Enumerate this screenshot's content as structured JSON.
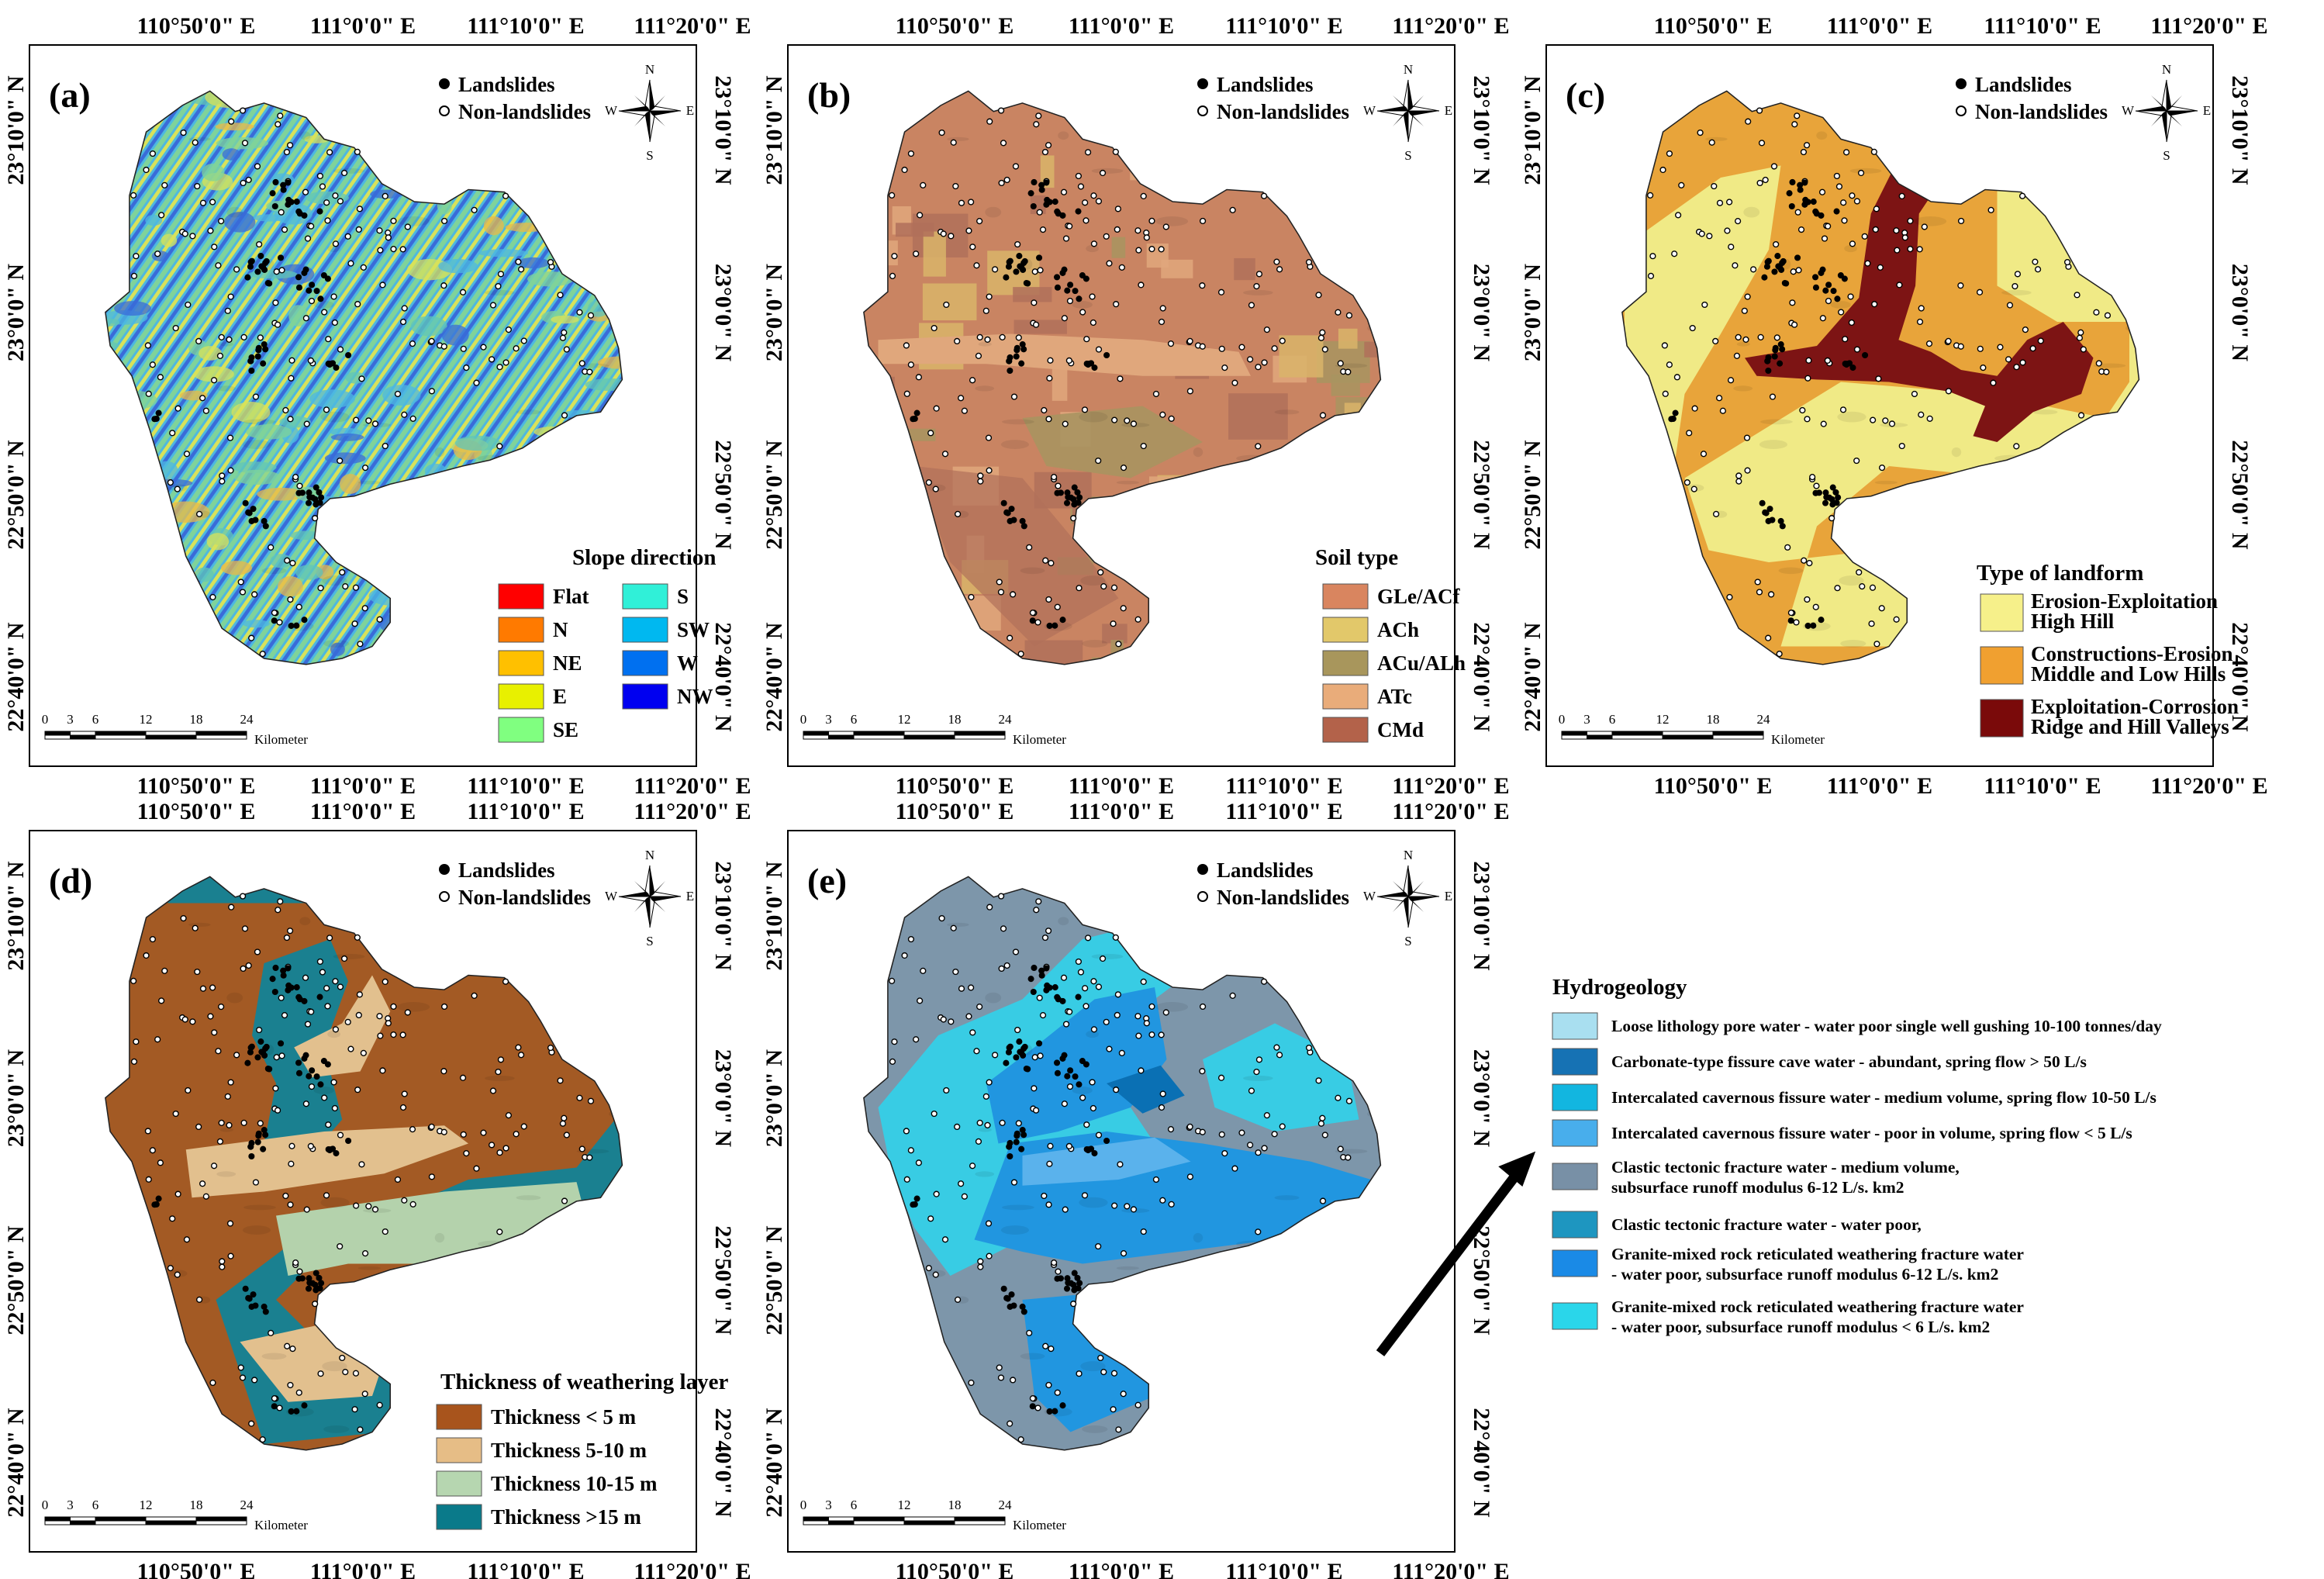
{
  "coordinates": {
    "top_longitudes": [
      "110°50'0\" E",
      "111°0'0\" E",
      "111°10'0\" E",
      "111°20'0\" E"
    ],
    "bottom_longitudes": [
      "110°50'0\" E",
      "111°0'0\" E",
      "111°10'0\" E",
      "111°20'0\" E"
    ],
    "latitudes": [
      "23°10'0\" N",
      "23°0'0\" N",
      "22°50'0\" N",
      "22°40'0\" N"
    ]
  },
  "points_legend": {
    "landslides": "Landslides",
    "non_landslides": "Non-landslides"
  },
  "compass": {
    "n": "N",
    "s": "S",
    "e": "E",
    "w": "W"
  },
  "scale_bar": {
    "ticks": [
      "0",
      "3",
      "6",
      "12",
      "18",
      "24"
    ],
    "unit": "Kilometer"
  },
  "panels": [
    {
      "id": "a",
      "label": "(a)",
      "legend_title": "Slope direction",
      "legend_items": [
        {
          "label": "Flat",
          "color": "#ff0000"
        },
        {
          "label": "N",
          "color": "#ff7a00"
        },
        {
          "label": "NE",
          "color": "#ffc000"
        },
        {
          "label": "E",
          "color": "#e8f000"
        },
        {
          "label": "SE",
          "color": "#80ff80"
        },
        {
          "label": "S",
          "color": "#30f0d8"
        },
        {
          "label": "SW",
          "color": "#00b8f0"
        },
        {
          "label": "W",
          "color": "#0070f0"
        },
        {
          "label": "NW",
          "color": "#0000f0"
        }
      ],
      "map_colors": [
        "#4db8e0",
        "#7fd39a",
        "#d8e25a",
        "#3a6bd8",
        "#e8b84a",
        "#60c6b8"
      ]
    },
    {
      "id": "b",
      "label": "(b)",
      "legend_title": "Soil type",
      "legend_items": [
        {
          "label": "GLe/ACf",
          "color": "#d9855f"
        },
        {
          "label": "ACh",
          "color": "#e2c86a"
        },
        {
          "label": "ACu/ALh",
          "color": "#a8965c"
        },
        {
          "label": "ATc",
          "color": "#e9ac7a"
        },
        {
          "label": "CMd",
          "color": "#b3624a"
        }
      ],
      "map_colors": [
        "#c98462",
        "#d9b46a",
        "#b0705a",
        "#e0a77c",
        "#a89460"
      ]
    },
    {
      "id": "c",
      "label": "(c)",
      "legend_title": "Type of landform",
      "legend_items": [
        {
          "line1": "Erosion-Exploitation",
          "line2": "High Hill",
          "color": "#f6f08a"
        },
        {
          "line1": "Constructions-Erosion",
          "line2": "Middle and Low Hills",
          "color": "#f0a030"
        },
        {
          "line1": "Exploitation-Corrosion",
          "line2": "Ridge and Hill Valleys",
          "color": "#7a0a0a"
        }
      ],
      "map_colors": [
        "#e8a43a",
        "#f0ea86",
        "#7d1414"
      ]
    },
    {
      "id": "d",
      "label": "(d)",
      "legend_title": "Thickness of weathering layer",
      "legend_items": [
        {
          "label": "Thickness < 5 m",
          "color": "#a8541c"
        },
        {
          "label": "Thickness 5-10 m",
          "color": "#e6bd86"
        },
        {
          "label": "Thickness 10-15 m",
          "color": "#b6d6b0"
        },
        {
          "label": "Thickness >15 m",
          "color": "#0a7a8a"
        }
      ],
      "map_colors": [
        "#1a8090",
        "#a35a24",
        "#e2c08e",
        "#b4d2ac"
      ]
    },
    {
      "id": "e",
      "label": "(e)",
      "map_colors": [
        "#7d96aa",
        "#2196e0",
        "#38cce4",
        "#5ab2ec",
        "#0a70b4"
      ]
    }
  ],
  "hydrogeology": {
    "title": "Hydrogeology",
    "items": [
      {
        "line1": "Loose lithology pore water - water poor single well gushing 10-100 tonnes/day",
        "line2": "",
        "color": "#a9dff0"
      },
      {
        "line1": "Carbonate-type fissure cave water - abundant, spring flow > 50 L/s",
        "line2": "",
        "color": "#1672b4"
      },
      {
        "line1": "Intercalated cavernous fissure water - medium volume, spring flow 10-50 L/s",
        "line2": "",
        "color": "#12b6e0"
      },
      {
        "line1": "Intercalated cavernous fissure water - poor in volume, spring flow < 5 L/s",
        "line2": "",
        "color": "#48aeec"
      },
      {
        "line1": "Clastic tectonic fracture water - medium volume,",
        "line2": "subsurface runoff modulus 6-12 L/s. km2",
        "color": "#7890a6"
      },
      {
        "line1": "Clastic tectonic fracture water - water poor,",
        "line2": "",
        "color": "#1e96c0"
      },
      {
        "line1": "Granite-mixed rock reticulated weathering fracture water",
        "line2": " - water poor, subsurface runoff modulus 6-12 L/s. km2",
        "color": "#1a8ae6"
      },
      {
        "line1": "Granite-mixed rock reticulated weathering fracture water",
        "line2": " - water poor, subsurface runoff modulus < 6 L/s. km2",
        "color": "#2ad6ea"
      }
    ]
  }
}
